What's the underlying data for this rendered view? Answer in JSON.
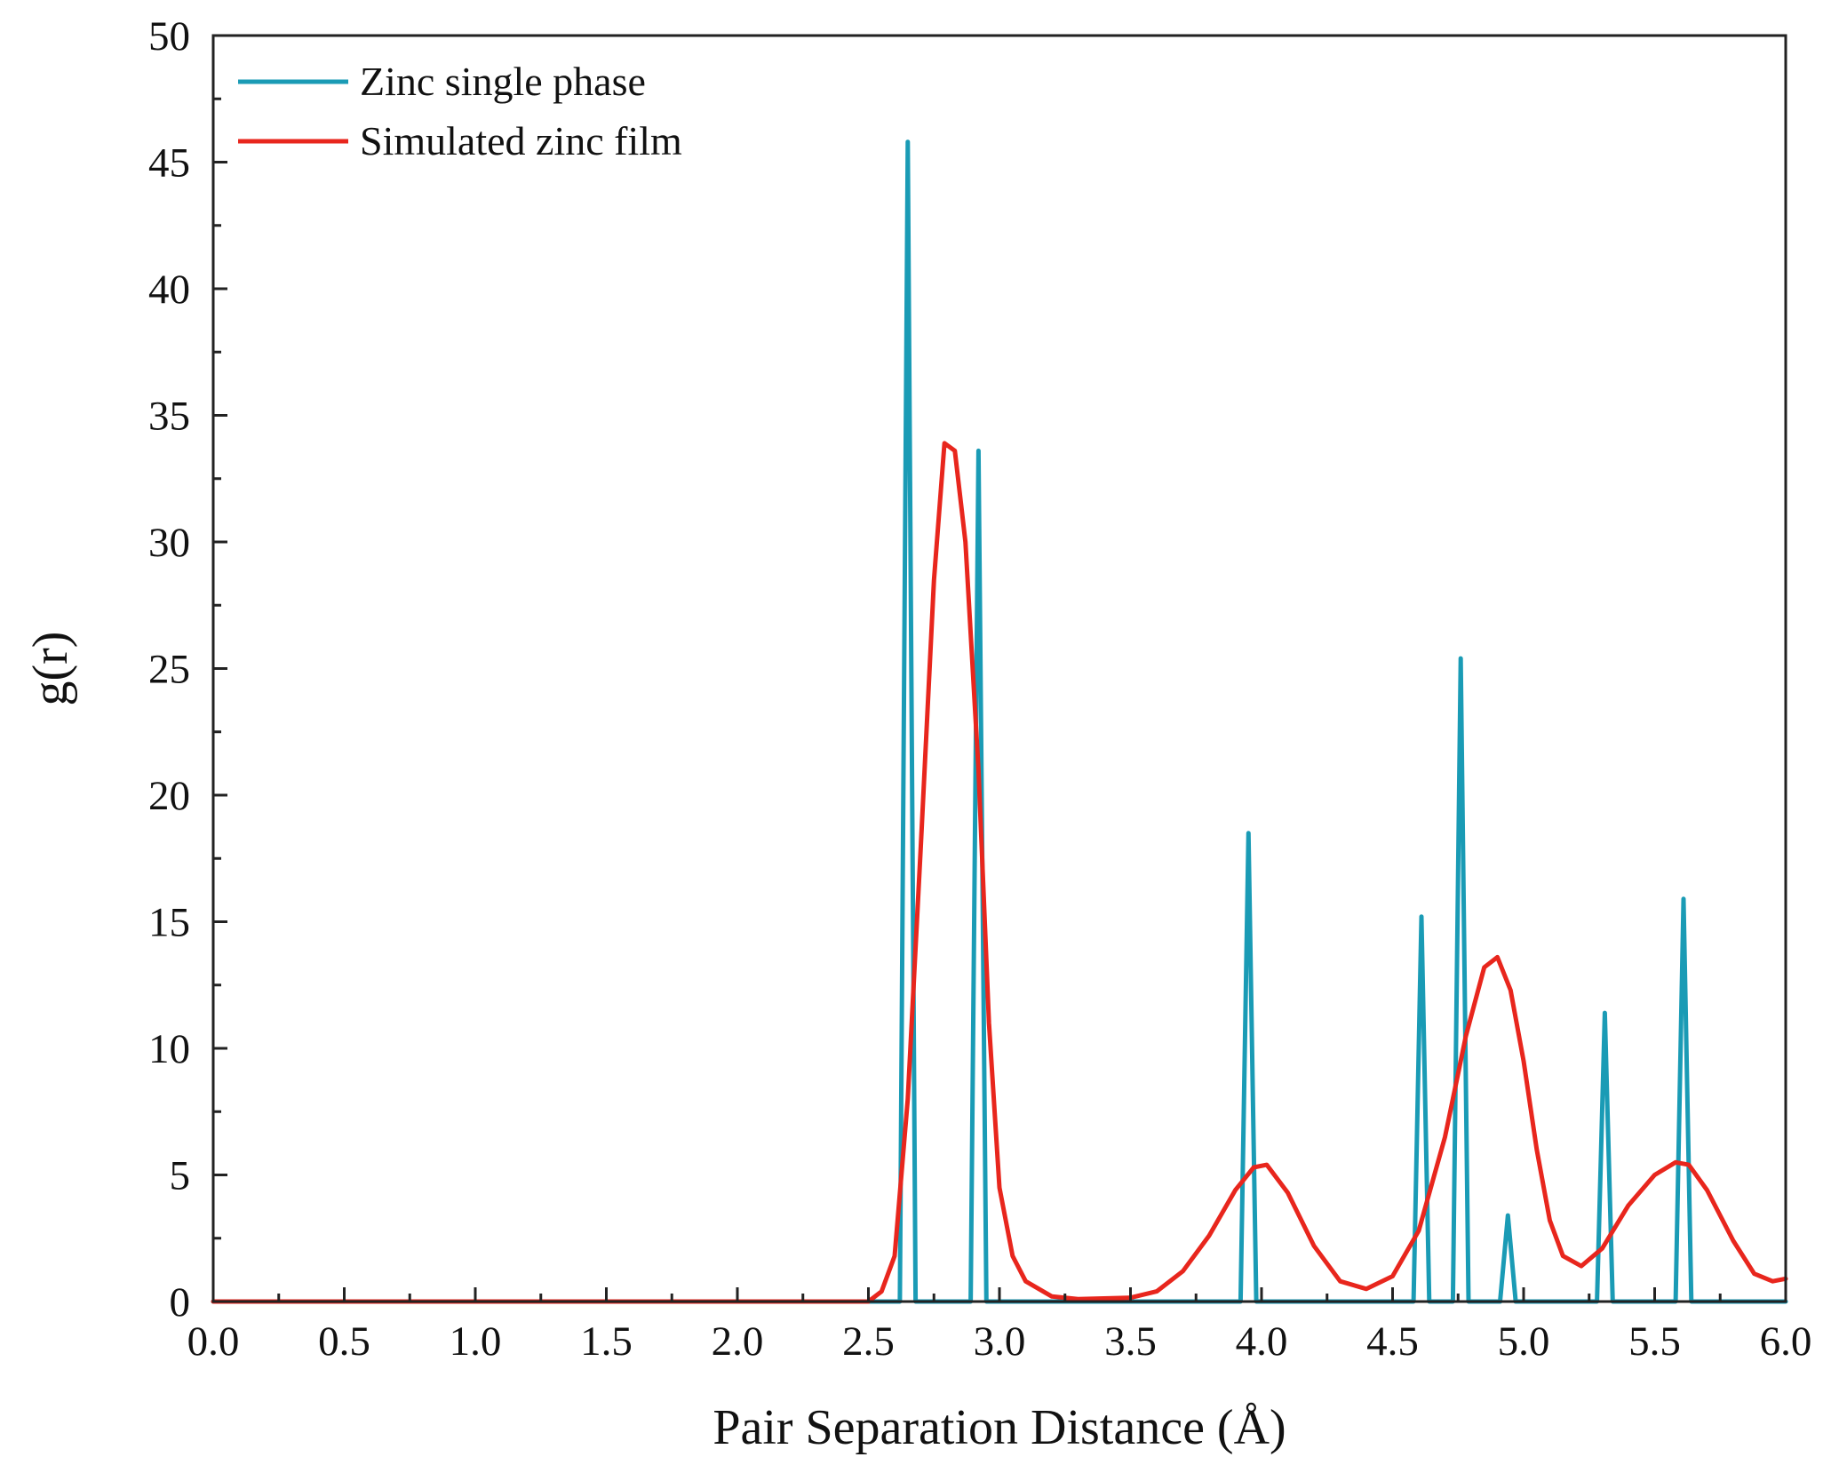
{
  "chart_data": {
    "type": "line",
    "title": "",
    "xlabel": "Pair Separation Distance (Å)",
    "ylabel": "g(r)",
    "xlim": [
      0.0,
      6.0
    ],
    "ylim": [
      0,
      50
    ],
    "x_ticks": [
      0.0,
      0.5,
      1.0,
      1.5,
      2.0,
      2.5,
      3.0,
      3.5,
      4.0,
      4.5,
      5.0,
      5.5,
      6.0
    ],
    "x_tick_labels": [
      "0.0",
      "0.5",
      "1.0",
      "1.5",
      "2.0",
      "2.5",
      "3.0",
      "3.5",
      "4.0",
      "4.5",
      "5.0",
      "5.5",
      "6.0"
    ],
    "y_ticks": [
      0,
      5,
      10,
      15,
      20,
      25,
      30,
      35,
      40,
      45,
      50
    ],
    "y_tick_labels": [
      "0",
      "5",
      "10",
      "15",
      "20",
      "25",
      "30",
      "35",
      "40",
      "45",
      "50"
    ],
    "grid": false,
    "legend_position": "top-left",
    "series": [
      {
        "name": "Zinc single phase",
        "color": "#1a9bb5",
        "points": [
          [
            0.0,
            0
          ],
          [
            2.62,
            0
          ],
          [
            2.65,
            45.8
          ],
          [
            2.68,
            0
          ],
          [
            2.89,
            0
          ],
          [
            2.92,
            33.6
          ],
          [
            2.95,
            0
          ],
          [
            3.92,
            0
          ],
          [
            3.95,
            18.5
          ],
          [
            3.98,
            0
          ],
          [
            4.58,
            0
          ],
          [
            4.61,
            15.2
          ],
          [
            4.64,
            0
          ],
          [
            4.73,
            0
          ],
          [
            4.76,
            25.4
          ],
          [
            4.79,
            0
          ],
          [
            4.91,
            0
          ],
          [
            4.94,
            3.4
          ],
          [
            4.97,
            0
          ],
          [
            5.28,
            0
          ],
          [
            5.31,
            11.4
          ],
          [
            5.34,
            0
          ],
          [
            5.58,
            0
          ],
          [
            5.61,
            15.9
          ],
          [
            5.64,
            0
          ],
          [
            6.0,
            0
          ]
        ]
      },
      {
        "name": "Simulated zinc film",
        "color": "#e8261d",
        "points": [
          [
            0.0,
            0
          ],
          [
            2.5,
            0
          ],
          [
            2.55,
            0.4
          ],
          [
            2.6,
            1.8
          ],
          [
            2.65,
            8
          ],
          [
            2.7,
            18
          ],
          [
            2.75,
            28.5
          ],
          [
            2.79,
            33.9
          ],
          [
            2.83,
            33.6
          ],
          [
            2.87,
            30
          ],
          [
            2.92,
            21
          ],
          [
            2.96,
            11
          ],
          [
            3.0,
            4.5
          ],
          [
            3.05,
            1.8
          ],
          [
            3.1,
            0.8
          ],
          [
            3.2,
            0.2
          ],
          [
            3.3,
            0.1
          ],
          [
            3.5,
            0.15
          ],
          [
            3.6,
            0.4
          ],
          [
            3.7,
            1.2
          ],
          [
            3.8,
            2.6
          ],
          [
            3.9,
            4.4
          ],
          [
            3.97,
            5.3
          ],
          [
            4.02,
            5.4
          ],
          [
            4.1,
            4.3
          ],
          [
            4.2,
            2.2
          ],
          [
            4.3,
            0.8
          ],
          [
            4.4,
            0.5
          ],
          [
            4.5,
            1.0
          ],
          [
            4.6,
            2.8
          ],
          [
            4.7,
            6.5
          ],
          [
            4.78,
            10.5
          ],
          [
            4.85,
            13.2
          ],
          [
            4.9,
            13.6
          ],
          [
            4.95,
            12.3
          ],
          [
            5.0,
            9.5
          ],
          [
            5.05,
            6.0
          ],
          [
            5.1,
            3.2
          ],
          [
            5.15,
            1.8
          ],
          [
            5.22,
            1.4
          ],
          [
            5.3,
            2.1
          ],
          [
            5.4,
            3.8
          ],
          [
            5.5,
            5.0
          ],
          [
            5.58,
            5.5
          ],
          [
            5.63,
            5.4
          ],
          [
            5.7,
            4.4
          ],
          [
            5.8,
            2.4
          ],
          [
            5.88,
            1.1
          ],
          [
            5.95,
            0.8
          ],
          [
            6.0,
            0.9
          ]
        ]
      }
    ]
  }
}
